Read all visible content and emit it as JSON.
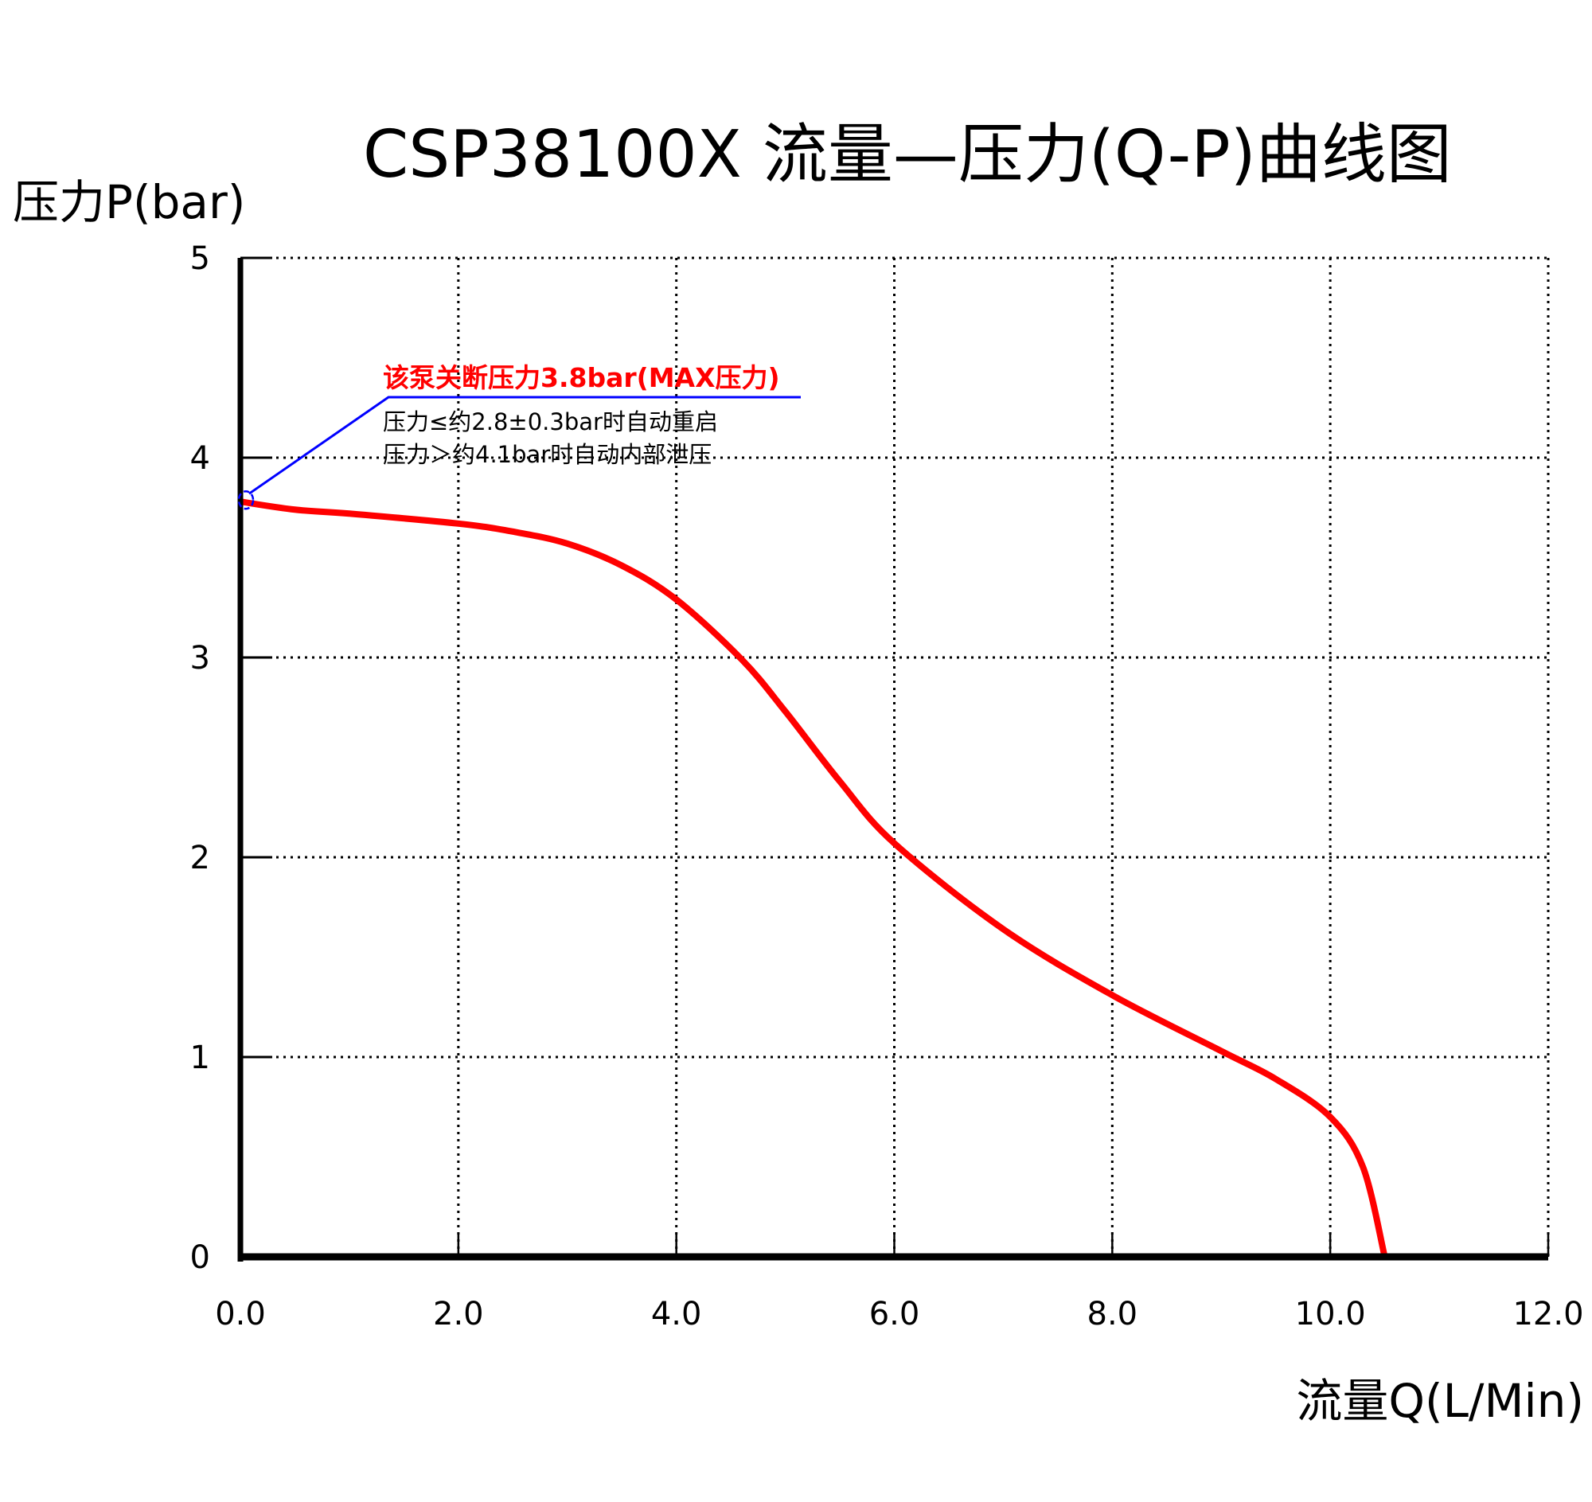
{
  "chart_data": {
    "type": "line",
    "title": "CSP38100X 流量—压力(Q-P)曲线图",
    "xlabel": "流量Q(L/Min)",
    "ylabel": "压力P(bar)",
    "xlim": [
      0,
      12
    ],
    "ylim": [
      0,
      5
    ],
    "xticks": [
      "0.0",
      "2.0",
      "4.0",
      "6.0",
      "8.0",
      "10.0",
      "12.0"
    ],
    "xtick_values": [
      0,
      2,
      4,
      6,
      8,
      10,
      12
    ],
    "yticks": [
      "0",
      "1",
      "2",
      "3",
      "4",
      "5"
    ],
    "ytick_values": [
      0,
      1,
      2,
      3,
      4,
      5
    ],
    "grid": true,
    "series": [
      {
        "color": "#ff0000",
        "x": [
          0,
          0.5,
          1,
          2,
          2.5,
          3,
          3.5,
          4,
          4.6,
          5,
          5.5,
          6,
          7,
          8,
          9,
          9.5,
          10,
          10.3,
          10.5
        ],
        "y": [
          3.78,
          3.74,
          3.72,
          3.67,
          3.63,
          3.57,
          3.46,
          3.29,
          2.99,
          2.73,
          2.38,
          2.07,
          1.64,
          1.31,
          1.03,
          0.89,
          0.7,
          0.45,
          0
        ]
      }
    ],
    "annotation": {
      "at": [
        0,
        3.8
      ],
      "title": "该泵关断压力3.8bar(MAX压力)",
      "line1": "压力≤约2.8±0.3bar时自动重启",
      "line2": "压力＞约4.1bar时自动内部泄压",
      "title_color": "#ff0000",
      "leader_color": "#0000ff"
    }
  }
}
